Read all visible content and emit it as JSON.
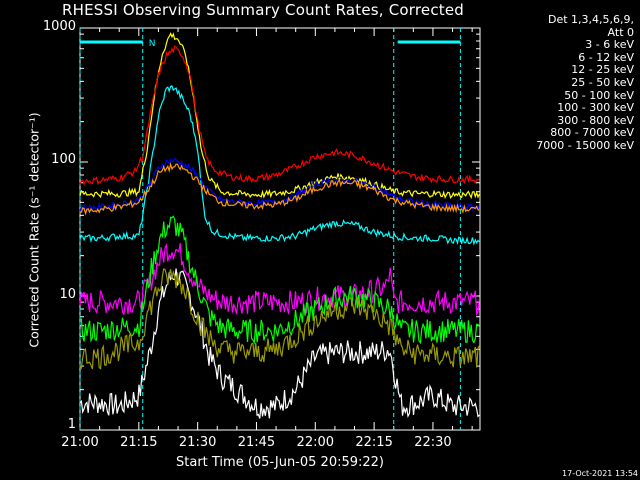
{
  "chart_data": {
    "type": "line",
    "title": "RHESSI Observing Summary Count Rates, Corrected",
    "xlabel": "Start Time (05-Jun-05 20:59:22)",
    "ylabel": "Corrected Count Rate (s⁻¹ detector⁻¹)",
    "yscale": "log",
    "ylim": [
      1,
      1000
    ],
    "xlim_min": [
      0,
      102
    ],
    "y_ticks": [
      "1",
      "10",
      "100",
      "1000"
    ],
    "x_ticks": [
      {
        "label": "21:00",
        "min": 0
      },
      {
        "label": "21:15",
        "min": 15
      },
      {
        "label": "21:30",
        "min": 30
      },
      {
        "label": "21:45",
        "min": 45
      },
      {
        "label": "22:00",
        "min": 60
      },
      {
        "label": "22:15",
        "min": 75
      },
      {
        "label": "22:30",
        "min": 90
      }
    ],
    "legend_header": [
      "Det 1,3,4,5,6,9,",
      "Att 0"
    ],
    "series": [
      {
        "name": "3 - 6 keV",
        "color": "#ffffff",
        "points": [
          [
            0,
            1.6
          ],
          [
            5,
            1.6
          ],
          [
            10,
            1.5
          ],
          [
            15,
            1.8
          ],
          [
            18,
            4
          ],
          [
            20,
            8
          ],
          [
            22,
            12
          ],
          [
            24,
            15
          ],
          [
            26,
            13
          ],
          [
            28,
            10
          ],
          [
            30,
            7
          ],
          [
            33,
            3.5
          ],
          [
            36,
            2.5
          ],
          [
            40,
            2.0
          ],
          [
            45,
            1.5
          ],
          [
            50,
            1.5
          ],
          [
            55,
            2.0
          ],
          [
            60,
            3.5
          ],
          [
            65,
            3.8
          ],
          [
            70,
            3.8
          ],
          [
            75,
            3.8
          ],
          [
            79,
            4.0
          ],
          [
            82,
            1.5
          ],
          [
            86,
            1.6
          ],
          [
            90,
            1.8
          ],
          [
            95,
            1.5
          ],
          [
            100,
            1.5
          ]
        ]
      },
      {
        "name": "6 - 12 keV",
        "color": "#ff00ff",
        "points": [
          [
            0,
            9
          ],
          [
            5,
            9
          ],
          [
            10,
            9
          ],
          [
            15,
            9
          ],
          [
            18,
            13
          ],
          [
            20,
            18
          ],
          [
            22,
            22
          ],
          [
            24,
            23
          ],
          [
            26,
            20
          ],
          [
            28,
            15
          ],
          [
            30,
            12
          ],
          [
            33,
            10
          ],
          [
            36,
            9
          ],
          [
            40,
            9
          ],
          [
            45,
            9
          ],
          [
            50,
            9
          ],
          [
            55,
            9
          ],
          [
            60,
            9.5
          ],
          [
            65,
            10
          ],
          [
            70,
            10
          ],
          [
            75,
            11
          ],
          [
            78,
            11.5
          ],
          [
            79,
            15
          ],
          [
            80,
            9
          ],
          [
            85,
            9
          ],
          [
            90,
            9
          ],
          [
            95,
            9
          ],
          [
            100,
            9
          ]
        ]
      },
      {
        "name": "12 - 25 keV",
        "color": "#00ff00",
        "points": [
          [
            0,
            5.5
          ],
          [
            5,
            5.5
          ],
          [
            10,
            5.8
          ],
          [
            15,
            6
          ],
          [
            18,
            15
          ],
          [
            20,
            25
          ],
          [
            22,
            33
          ],
          [
            24,
            35
          ],
          [
            26,
            28
          ],
          [
            28,
            18
          ],
          [
            30,
            12
          ],
          [
            33,
            7
          ],
          [
            36,
            5.8
          ],
          [
            40,
            5.5
          ],
          [
            45,
            5.5
          ],
          [
            50,
            5.5
          ],
          [
            55,
            6.5
          ],
          [
            60,
            8
          ],
          [
            65,
            9.5
          ],
          [
            70,
            10
          ],
          [
            75,
            9
          ],
          [
            79,
            8
          ],
          [
            82,
            5.5
          ],
          [
            86,
            5.5
          ],
          [
            90,
            5.5
          ],
          [
            95,
            5.5
          ],
          [
            100,
            5.5
          ]
        ]
      },
      {
        "name": "25 - 50 keV",
        "color": "#00ffff",
        "points": [
          [
            0,
            27
          ],
          [
            5,
            27
          ],
          [
            10,
            28
          ],
          [
            15,
            28
          ],
          [
            16,
            40
          ],
          [
            18,
            90
          ],
          [
            20,
            220
          ],
          [
            22,
            350
          ],
          [
            24,
            360
          ],
          [
            26,
            300
          ],
          [
            28,
            230
          ],
          [
            30,
            130
          ],
          [
            31,
            60
          ],
          [
            32,
            38
          ],
          [
            34,
            30
          ],
          [
            38,
            28
          ],
          [
            42,
            27
          ],
          [
            45,
            27
          ],
          [
            50,
            27
          ],
          [
            55,
            28
          ],
          [
            60,
            32
          ],
          [
            65,
            35
          ],
          [
            70,
            34
          ],
          [
            75,
            30
          ],
          [
            80,
            28
          ],
          [
            85,
            27
          ],
          [
            90,
            27
          ],
          [
            95,
            26
          ],
          [
            100,
            26
          ]
        ]
      },
      {
        "name": "50 - 100 keV",
        "color": "#ffff00",
        "points": [
          [
            0,
            58
          ],
          [
            5,
            58
          ],
          [
            10,
            58
          ],
          [
            15,
            60
          ],
          [
            17,
            120
          ],
          [
            19,
            320
          ],
          [
            21,
            650
          ],
          [
            23,
            900
          ],
          [
            25,
            830
          ],
          [
            27,
            620
          ],
          [
            29,
            300
          ],
          [
            31,
            120
          ],
          [
            33,
            75
          ],
          [
            36,
            60
          ],
          [
            40,
            58
          ],
          [
            45,
            57
          ],
          [
            50,
            58
          ],
          [
            55,
            62
          ],
          [
            60,
            70
          ],
          [
            65,
            78
          ],
          [
            70,
            76
          ],
          [
            75,
            68
          ],
          [
            80,
            60
          ],
          [
            85,
            58
          ],
          [
            90,
            58
          ],
          [
            95,
            57
          ],
          [
            100,
            57
          ]
        ]
      },
      {
        "name": "100 - 300 keV",
        "color": "#ff0000",
        "points": [
          [
            0,
            72
          ],
          [
            5,
            73
          ],
          [
            10,
            76
          ],
          [
            14,
            85
          ],
          [
            16,
            110
          ],
          [
            18,
            230
          ],
          [
            20,
            450
          ],
          [
            22,
            620
          ],
          [
            24,
            700
          ],
          [
            26,
            640
          ],
          [
            28,
            460
          ],
          [
            30,
            200
          ],
          [
            32,
            110
          ],
          [
            34,
            88
          ],
          [
            38,
            78
          ],
          [
            42,
            75
          ],
          [
            45,
            75
          ],
          [
            50,
            80
          ],
          [
            55,
            92
          ],
          [
            60,
            110
          ],
          [
            65,
            118
          ],
          [
            70,
            112
          ],
          [
            75,
            98
          ],
          [
            80,
            85
          ],
          [
            85,
            78
          ],
          [
            90,
            75
          ],
          [
            95,
            74
          ],
          [
            100,
            74
          ]
        ]
      },
      {
        "name": "300 - 800 keV",
        "color": "#0000ff",
        "points": [
          [
            0,
            45
          ],
          [
            5,
            46
          ],
          [
            10,
            48
          ],
          [
            15,
            52
          ],
          [
            18,
            70
          ],
          [
            20,
            90
          ],
          [
            22,
            100
          ],
          [
            24,
            103
          ],
          [
            26,
            98
          ],
          [
            28,
            90
          ],
          [
            30,
            78
          ],
          [
            33,
            60
          ],
          [
            36,
            52
          ],
          [
            40,
            50
          ],
          [
            45,
            49
          ],
          [
            50,
            50
          ],
          [
            55,
            56
          ],
          [
            60,
            68
          ],
          [
            65,
            74
          ],
          [
            70,
            72
          ],
          [
            75,
            65
          ],
          [
            80,
            55
          ],
          [
            85,
            50
          ],
          [
            90,
            48
          ],
          [
            95,
            47
          ],
          [
            100,
            46
          ]
        ]
      },
      {
        "name": "800 - 7000 keV",
        "color": "#ff9900",
        "points": [
          [
            0,
            43
          ],
          [
            5,
            44
          ],
          [
            10,
            46
          ],
          [
            15,
            50
          ],
          [
            18,
            66
          ],
          [
            20,
            82
          ],
          [
            22,
            90
          ],
          [
            24,
            92
          ],
          [
            26,
            90
          ],
          [
            28,
            83
          ],
          [
            30,
            72
          ],
          [
            33,
            57
          ],
          [
            36,
            50
          ],
          [
            40,
            48
          ],
          [
            45,
            47
          ],
          [
            50,
            48
          ],
          [
            55,
            53
          ],
          [
            60,
            63
          ],
          [
            65,
            70
          ],
          [
            70,
            69
          ],
          [
            75,
            62
          ],
          [
            80,
            52
          ],
          [
            85,
            48
          ],
          [
            90,
            46
          ],
          [
            95,
            45
          ],
          [
            100,
            44
          ]
        ]
      },
      {
        "name": "7000 - 15000 keV",
        "color": "#999900",
        "points": [
          [
            0,
            3.5
          ],
          [
            5,
            3.5
          ],
          [
            10,
            4
          ],
          [
            15,
            4.5
          ],
          [
            17,
            7
          ],
          [
            19,
            10
          ],
          [
            21,
            13
          ],
          [
            23,
            14
          ],
          [
            25,
            13.5
          ],
          [
            27,
            11
          ],
          [
            29,
            8
          ],
          [
            31,
            6
          ],
          [
            33,
            4.8
          ],
          [
            36,
            4
          ],
          [
            40,
            3.8
          ],
          [
            45,
            3.8
          ],
          [
            50,
            4
          ],
          [
            55,
            5
          ],
          [
            60,
            6.5
          ],
          [
            65,
            8
          ],
          [
            70,
            8.5
          ],
          [
            75,
            7.5
          ],
          [
            79,
            6
          ],
          [
            82,
            4
          ],
          [
            86,
            3.7
          ],
          [
            90,
            3.6
          ],
          [
            95,
            3.5
          ],
          [
            100,
            3.5
          ]
        ]
      }
    ],
    "event_lines_min": [
      0,
      16,
      80,
      97
    ],
    "night_bars_min": [
      [
        0,
        16
      ],
      [
        81,
        97
      ]
    ],
    "night_label": "N"
  },
  "timestamp": "17-Oct-2021 13:54"
}
